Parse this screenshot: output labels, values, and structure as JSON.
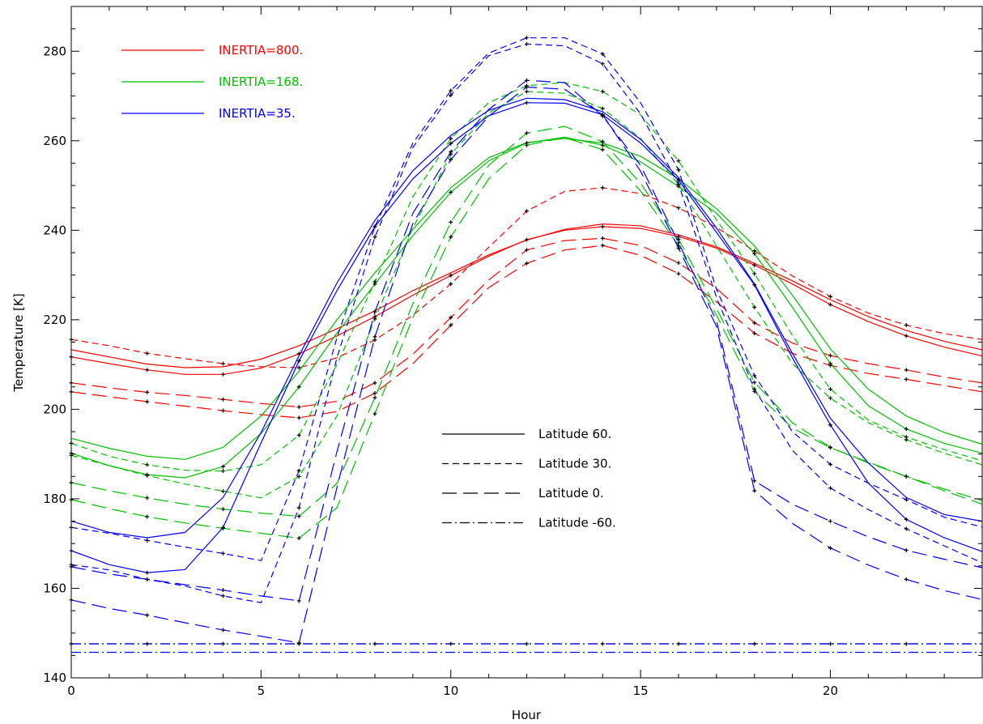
{
  "chart_data": {
    "type": "line",
    "title": "",
    "xlabel": "Hour",
    "ylabel": "Temperature [K]",
    "xlim": [
      0,
      24
    ],
    "ylim": [
      140,
      290
    ],
    "xticks": [
      "0",
      "5",
      "10",
      "15",
      "20"
    ],
    "yticks": [
      "140",
      "160",
      "180",
      "200",
      "220",
      "240",
      "260",
      "280"
    ],
    "grid": false,
    "colors": {
      "800": "#ff0000",
      "168": "#00c000",
      "35": "#0000ff",
      "axis": "#000000",
      "marker": "#000000"
    },
    "legend_inertia": {
      "placement": "top-left",
      "entries": [
        {
          "label": "INERTIA=800.",
          "color": "#ff0000"
        },
        {
          "label": "INERTIA=168.",
          "color": "#00c000"
        },
        {
          "label": "INERTIA=35.",
          "color": "#0000ff"
        }
      ]
    },
    "legend_latitude": {
      "placement": "center-right",
      "entries": [
        {
          "label": "Latitude 60.",
          "style": "solid"
        },
        {
          "label": "Latitude 30.",
          "style": "short-dash"
        },
        {
          "label": "Latitude 0.",
          "style": "long-dash"
        },
        {
          "label": "Latitude -60.",
          "style": "dash-dot"
        }
      ]
    },
    "x": [
      0,
      1,
      2,
      3,
      4,
      5,
      6,
      7,
      8,
      9,
      10,
      11,
      12,
      13,
      14,
      15,
      16,
      17,
      18,
      19,
      20,
      21,
      22,
      23,
      24
    ],
    "marker_hours": [
      0,
      2,
      4,
      6,
      8,
      10,
      12,
      14,
      16,
      18,
      20,
      22
    ],
    "series": [
      {
        "inertia": "800",
        "style": "solid",
        "markers": false,
        "values": [
          213.3,
          211.7,
          210.1,
          209.3,
          209.5,
          211.2,
          214.2,
          218.0,
          222.0,
          226.5,
          230.5,
          234.5,
          237.8,
          240.2,
          241.4,
          241.0,
          239.0,
          236.3,
          232.6,
          228.7,
          224.5,
          220.7,
          217.6,
          215.2,
          213.3
        ]
      },
      {
        "inertia": "800",
        "style": "solid",
        "markers": true,
        "values": [
          211.7,
          210.2,
          208.8,
          207.8,
          207.8,
          209.2,
          212.4,
          216.4,
          220.7,
          225.5,
          229.9,
          234.2,
          237.9,
          240.0,
          240.8,
          240.4,
          238.6,
          236.0,
          232.2,
          228.0,
          223.4,
          219.6,
          216.4,
          213.9,
          211.9
        ]
      },
      {
        "inertia": "800",
        "style": "short-dash",
        "markers": true,
        "values": [
          215.6,
          214.2,
          212.5,
          211.3,
          210.2,
          209.5,
          209.3,
          211.5,
          215.5,
          221.0,
          228.0,
          236.2,
          244.3,
          248.7,
          249.5,
          248.2,
          245.0,
          240.6,
          235.4,
          229.8,
          225.2,
          221.5,
          218.8,
          216.9,
          215.6
        ]
      },
      {
        "inertia": "800",
        "style": "long-dash",
        "markers": true,
        "values": [
          205.9,
          204.8,
          203.8,
          203.1,
          202.2,
          201.3,
          200.5,
          201.8,
          205.9,
          212.3,
          220.5,
          228.9,
          235.6,
          237.7,
          238.2,
          236.6,
          232.7,
          227.0,
          219.3,
          214.8,
          212.0,
          210.2,
          208.8,
          207.2,
          205.9
        ]
      },
      {
        "inertia": "800",
        "style": "long-dash",
        "markers": true,
        "values": [
          203.9,
          202.8,
          201.7,
          200.7,
          199.7,
          198.8,
          198.1,
          199.5,
          203.6,
          210.2,
          218.8,
          227.2,
          232.6,
          235.6,
          236.6,
          234.4,
          230.3,
          224.0,
          217.0,
          212.5,
          209.8,
          208.0,
          206.7,
          205.3,
          203.9
        ]
      },
      {
        "inertia": "168",
        "style": "solid",
        "markers": false,
        "values": [
          193.5,
          191.3,
          189.5,
          188.8,
          191.5,
          198.5,
          208.5,
          220.0,
          230.5,
          240.2,
          249.5,
          256.2,
          259.6,
          260.5,
          259.5,
          256.5,
          251.5,
          244.8,
          236.5,
          225.5,
          213.5,
          204.5,
          198.5,
          194.8,
          192.2
        ]
      },
      {
        "inertia": "168",
        "style": "solid",
        "markers": true,
        "values": [
          190.2,
          187.4,
          185.4,
          184.7,
          187.2,
          194.6,
          205.0,
          217.0,
          228.0,
          238.8,
          248.5,
          255.5,
          259.5,
          260.8,
          259.0,
          255.3,
          249.8,
          243.8,
          234.8,
          222.8,
          210.2,
          200.8,
          195.6,
          192.4,
          190.2
        ]
      },
      {
        "inertia": "168",
        "style": "short-dash",
        "markers": true,
        "values": [
          192.4,
          189.5,
          187.6,
          186.4,
          186.2,
          187.6,
          194.2,
          210.0,
          228.5,
          247.5,
          260.5,
          268.5,
          272.3,
          273.0,
          271.0,
          265.8,
          255.5,
          242.3,
          230.3,
          216.5,
          204.5,
          197.6,
          193.8,
          191.0,
          188.5
        ]
      },
      {
        "inertia": "168",
        "style": "short-dash",
        "markers": true,
        "values": [
          189.7,
          187.4,
          185.2,
          183.3,
          181.7,
          180.2,
          185.0,
          198.5,
          220.2,
          240.5,
          257.0,
          266.2,
          271.0,
          270.6,
          267.2,
          260.5,
          250.2,
          236.5,
          222.8,
          210.2,
          202.5,
          197.0,
          193.2,
          190.2,
          187.6
        ]
      },
      {
        "inertia": "168",
        "style": "long-dash",
        "markers": true,
        "values": [
          183.6,
          181.8,
          180.2,
          178.8,
          177.7,
          176.8,
          176.1,
          183.4,
          202.6,
          223.6,
          241.8,
          254.5,
          261.7,
          263.2,
          259.8,
          250.5,
          238.0,
          222.5,
          206.0,
          197.0,
          191.5,
          188.0,
          185.0,
          182.2,
          179.6
        ]
      },
      {
        "inertia": "168",
        "style": "long-dash",
        "markers": true,
        "values": [
          179.8,
          177.8,
          176.0,
          174.6,
          173.4,
          172.3,
          171.2,
          178.0,
          199.0,
          220.5,
          238.5,
          251.5,
          259.0,
          260.7,
          258.0,
          248.8,
          236.5,
          221.0,
          204.0,
          195.8,
          191.4,
          188.2,
          185.0,
          181.8,
          178.8
        ]
      },
      {
        "inertia": "35",
        "style": "solid",
        "markers": false,
        "values": [
          175.0,
          172.5,
          171.3,
          172.5,
          180.3,
          194.8,
          212.0,
          228.2,
          242.2,
          253.3,
          261.2,
          266.8,
          269.5,
          269.2,
          266.5,
          260.3,
          251.8,
          240.5,
          228.0,
          212.5,
          198.0,
          188.0,
          180.3,
          176.5,
          175.0
        ]
      },
      {
        "inertia": "35",
        "style": "solid",
        "markers": true,
        "values": [
          168.4,
          165.3,
          163.5,
          164.2,
          173.6,
          192.5,
          210.8,
          226.5,
          240.8,
          251.5,
          259.4,
          265.6,
          268.5,
          268.4,
          265.8,
          259.5,
          251.2,
          239.5,
          227.8,
          211.5,
          196.5,
          183.5,
          175.4,
          171.3,
          168.2
        ]
      },
      {
        "inertia": "35",
        "style": "short-dash",
        "markers": true,
        "values": [
          173.6,
          172.3,
          170.7,
          169.2,
          167.8,
          166.2,
          186.3,
          216.0,
          240.8,
          259.5,
          271.2,
          279.6,
          283.0,
          283.0,
          279.4,
          268.5,
          253.5,
          226.8,
          207.5,
          195.0,
          187.7,
          183.5,
          179.8,
          175.9,
          173.7
        ]
      },
      {
        "inertia": "35",
        "style": "short-dash",
        "markers": true,
        "values": [
          165.3,
          164.1,
          162.0,
          160.5,
          158.3,
          156.8,
          178.0,
          211.5,
          238.5,
          258.5,
          270.2,
          279.0,
          281.6,
          281.2,
          277.2,
          266.0,
          250.3,
          225.0,
          204.5,
          190.8,
          182.4,
          177.6,
          173.3,
          169.5,
          165.7
        ]
      },
      {
        "inertia": "35",
        "style": "long-dash",
        "markers": true,
        "values": [
          164.8,
          163.2,
          162.0,
          160.8,
          159.6,
          158.3,
          157.2,
          190.5,
          221.8,
          243.8,
          257.5,
          267.0,
          273.5,
          273.0,
          265.5,
          254.5,
          237.2,
          219.8,
          184.0,
          178.8,
          175.0,
          171.5,
          168.5,
          166.5,
          164.6
        ]
      },
      {
        "inertia": "35",
        "style": "long-dash",
        "markers": true,
        "values": [
          157.4,
          155.5,
          154.0,
          152.3,
          150.7,
          149.3,
          147.8,
          182.5,
          216.2,
          241.5,
          255.8,
          265.5,
          272.0,
          271.5,
          265.8,
          253.2,
          236.0,
          218.5,
          181.8,
          174.5,
          169.0,
          165.2,
          162.0,
          159.5,
          157.5
        ]
      },
      {
        "inertia": "800",
        "style": "dash-dot",
        "markers": false,
        "color": "#1a1a3a",
        "values": [
          147.6,
          147.6,
          147.6,
          147.6,
          147.6,
          147.6,
          147.6,
          147.6,
          147.6,
          147.6,
          147.6,
          147.6,
          147.6,
          147.6,
          147.6,
          147.6,
          147.6,
          147.6,
          147.6,
          147.6,
          147.6,
          147.6,
          147.6,
          147.6,
          147.6
        ]
      },
      {
        "inertia": "35",
        "style": "dash-dot",
        "markers": true,
        "values": [
          147.6,
          147.6,
          147.6,
          147.6,
          147.6,
          147.6,
          147.6,
          147.6,
          147.6,
          147.6,
          147.6,
          147.6,
          147.6,
          147.6,
          147.6,
          147.6,
          147.6,
          147.6,
          147.6,
          147.6,
          147.6,
          147.6,
          147.6,
          147.6,
          147.6
        ]
      },
      {
        "inertia": "35",
        "style": "dash-dot",
        "markers": false,
        "values": [
          145.7,
          145.7,
          145.7,
          145.7,
          145.7,
          145.7,
          145.7,
          145.7,
          145.7,
          145.7,
          145.7,
          145.7,
          145.7,
          145.7,
          145.7,
          145.7,
          145.7,
          145.7,
          145.7,
          145.7,
          145.7,
          145.7,
          145.7,
          145.7,
          145.7
        ]
      }
    ]
  }
}
